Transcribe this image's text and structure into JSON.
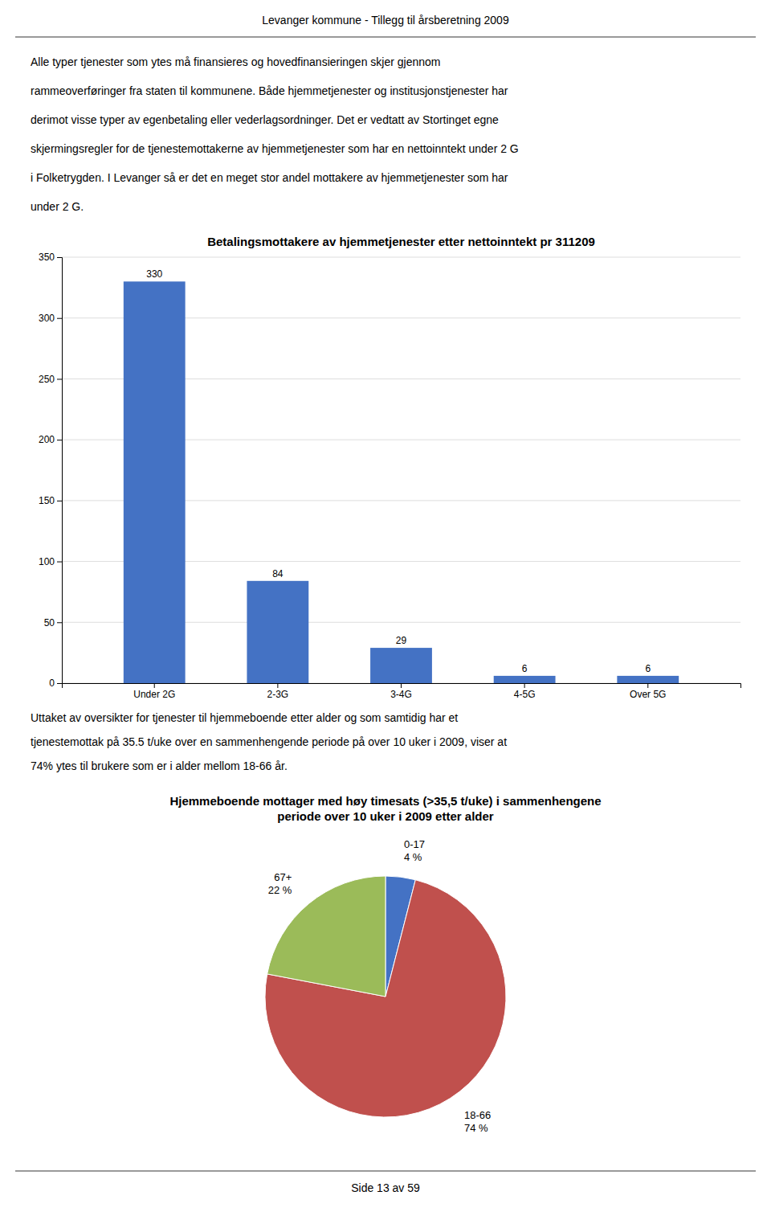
{
  "page_title": "Levanger kommune - Tillegg til årsberetning 2009",
  "page_footer": "Side 13 av 59",
  "paragraphs": [
    [
      "Alle typer tjenester som ytes må finansieres og hovedfinansieringen skjer gjennom",
      "rammeoverføringer fra staten til kommunene. Både hjemmetjenester og institusjonstjenester har",
      "derimot visse typer av egenbetaling eller vederlagsordninger. Det er vedtatt av Stortinget egne",
      "skjermingsregler for de tjenestemottakerne av hjemmetjenester som har en nettoinntekt under 2 G",
      "i Folketrygden. I Levanger så er det en meget stor andel mottakere av hjemmetjenester som har",
      "under 2 G."
    ],
    [
      "Uttaket av oversikter for tjenester til hjemmeboende etter alder og som samtidig har et",
      "tjenestemottak på 35.5 t/uke over en sammenhengende periode på over 10 uker i 2009, viser at",
      "74% ytes til brukere som er i alder mellom 18-66 år."
    ]
  ],
  "chart_data": [
    {
      "type": "bar",
      "title": "Betalingsmottakere av hjemmetjenester etter nettoinntekt pr 311209",
      "categories": [
        "Under 2G",
        "2-3G",
        "3-4G",
        "4-5G",
        "Over 5G"
      ],
      "values": [
        330,
        84,
        29,
        6,
        6
      ],
      "color": "#4472C4",
      "ylim": [
        0,
        350
      ],
      "yticks": [
        0,
        50,
        100,
        150,
        200,
        250,
        300,
        350
      ],
      "grid": true,
      "data_labels": true
    },
    {
      "type": "pie",
      "title": "Hjemmeboende mottager med høy timesats (>35,5 t/uke) i sammenhengene\nperiode over 10 uker i 2009 etter alder",
      "categories": [
        "0-17",
        "18-66",
        "67+"
      ],
      "values": [
        4,
        74,
        22
      ],
      "value_labels": [
        "4 %",
        "74 %",
        "22 %"
      ],
      "colors": [
        "#4472C4",
        "#C0504D",
        "#9BBB59"
      ],
      "data_labels": true
    }
  ]
}
